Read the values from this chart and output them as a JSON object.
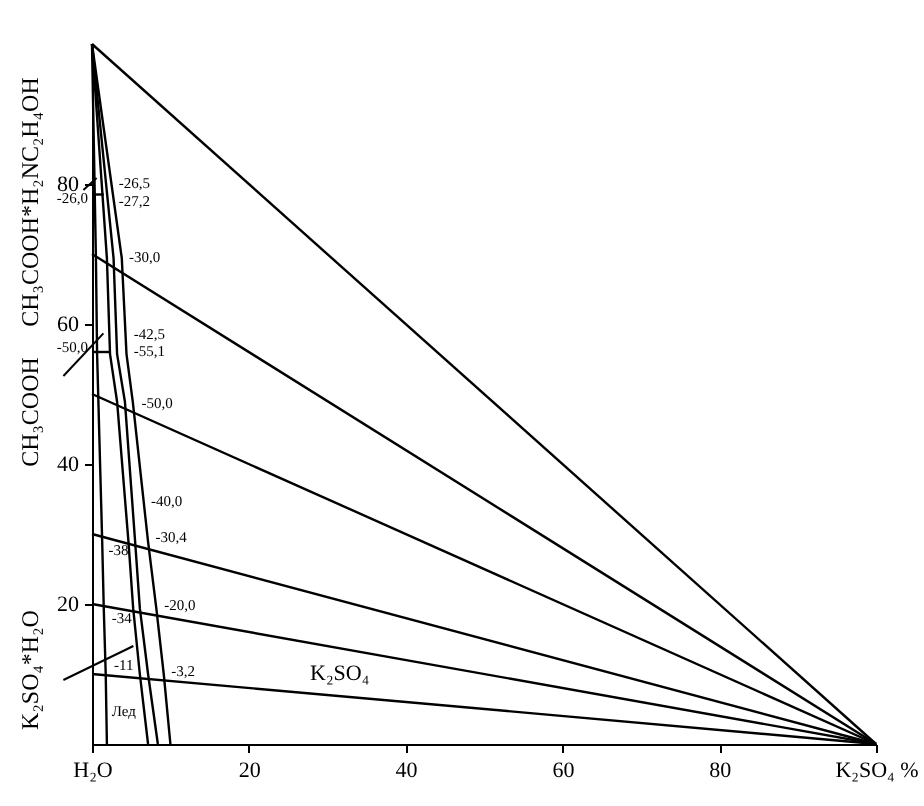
{
  "chart_data": {
    "type": "line",
    "xlim": [
      0,
      100
    ],
    "ylim": [
      0,
      100
    ],
    "xticks": [
      {
        "value": 0,
        "label": "H₂O"
      },
      20,
      40,
      60,
      80,
      {
        "value": 100,
        "label": "K₂SO₄ %"
      }
    ],
    "yticks": [
      20,
      40,
      60,
      80
    ],
    "series": [
      {
        "color": "#000000",
        "x": [
          0,
          100
        ],
        "values": [
          100,
          0
        ]
      },
      {
        "color": "#000000",
        "x": [
          0,
          100
        ],
        "values": [
          70,
          0
        ]
      },
      {
        "color": "#000000",
        "x": [
          0,
          100
        ],
        "values": [
          50,
          0
        ]
      },
      {
        "color": "#000000",
        "x": [
          0,
          100
        ],
        "values": [
          30,
          0
        ]
      },
      {
        "color": "#000000",
        "x": [
          0,
          100
        ],
        "values": [
          20,
          0
        ]
      },
      {
        "color": "#000000",
        "x": [
          0,
          100
        ],
        "values": [
          10,
          0
        ]
      },
      {
        "color": "#000000",
        "x": [
          0,
          0.5,
          0.65,
          1.3,
          1.5,
          1.75,
          1.9
        ],
        "values": [
          100,
          69.4,
          55.7,
          28.9,
          19.4,
          10,
          0
        ]
      },
      {
        "color": "#000000",
        "x": [
          0,
          1.9,
          2.3,
          3.2,
          4.65,
          5.25,
          6.1,
          7.15
        ],
        "values": [
          100,
          69.4,
          55.7,
          48.9,
          28.9,
          19.4,
          10,
          0
        ]
      },
      {
        "color": "#000000",
        "x": [
          0,
          2.75,
          3.2,
          4.2,
          5.5,
          6.1,
          7.15,
          8.4
        ],
        "values": [
          100,
          69.4,
          55.7,
          48.9,
          28.9,
          19.4,
          10,
          0
        ]
      },
      {
        "color": "#000000",
        "x": [
          0,
          3.8,
          4.4,
          5.2,
          7.15,
          8.2,
          9.15,
          10
        ],
        "values": [
          100,
          69.4,
          55.7,
          48.9,
          28.9,
          19.4,
          10,
          0
        ]
      },
      {
        "color": "#000000",
        "x": [
          0,
          1.5
        ],
        "values": [
          78.5,
          78.5
        ]
      },
      {
        "color": "#000000",
        "x": [
          0,
          2.4
        ],
        "values": [
          56,
          56
        ]
      }
    ],
    "annotations": [
      "CH₃COOH*H₂NC₂H₄OH",
      "CH₃COOH",
      "K₂SO₄*H₂O",
      "K₂SO₄",
      {
        "text": "-26,0",
        "x": 0,
        "y": 77.8
      },
      {
        "text": "-26,5",
        "x": 2.9,
        "y": 80
      },
      {
        "text": "-27,2",
        "x": 2.9,
        "y": 77.5
      },
      {
        "text": "-30,0",
        "x": 4.2,
        "y": 69.4
      },
      {
        "text": "-42,5",
        "x": 4.8,
        "y": 58.5
      },
      {
        "text": "-55,1",
        "x": 4.8,
        "y": 56
      },
      {
        "text": "-50,0",
        "x": 0,
        "y": 56.6
      },
      {
        "text": "-50,0",
        "x": 5.8,
        "y": 48.6
      },
      {
        "text": "-40,0",
        "x": 7,
        "y": 34.6
      },
      {
        "text": "-38",
        "x": 1.6,
        "y": 27.6
      },
      {
        "text": "-30,4",
        "x": 7.6,
        "y": 29.4
      },
      {
        "text": "-34",
        "x": 2,
        "y": 17.9
      },
      {
        "text": "-20,0",
        "x": 8.7,
        "y": 19.7
      },
      {
        "text": "-11",
        "x": 2.3,
        "y": 11.1
      },
      {
        "text": "-3,2",
        "x": 9.6,
        "y": 10.3
      },
      {
        "text": "Лед",
        "x": 2,
        "y": 4.6
      }
    ]
  }
}
